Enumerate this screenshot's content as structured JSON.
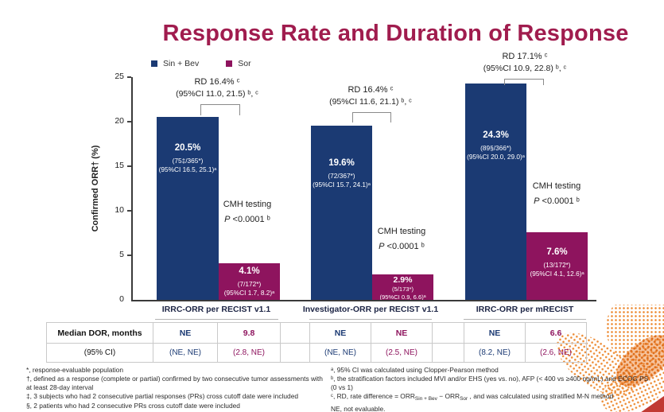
{
  "title": "Response Rate and Duration of Response",
  "colors": {
    "sin_bev": "#1B3A73",
    "sor": "#8E145E",
    "title": "#A01C4E"
  },
  "legend": [
    {
      "label": "Sin + Bev"
    },
    {
      "label": "Sor"
    }
  ],
  "y_axis": {
    "label": "Confirmed ORR† (%)",
    "ticks": [
      "25",
      "20",
      "15",
      "10",
      "5",
      "0"
    ]
  },
  "chart_data": {
    "type": "bar",
    "title": "Response Rate and Duration of Response",
    "ylabel": "Confirmed ORR† (%)",
    "ylim": [
      0,
      25
    ],
    "grid": false,
    "legend_position": "top-left",
    "categories": [
      "IRRC-ORR per RECIST v1.1",
      "Investigator-ORR per RECIST v1.1",
      "IRRC-ORR per mRECIST"
    ],
    "series": [
      {
        "name": "Sin + Bev",
        "values": [
          20.5,
          19.6,
          24.3
        ]
      },
      {
        "name": "Sor",
        "values": [
          4.1,
          2.9,
          7.6
        ]
      }
    ],
    "groups": [
      {
        "category": "IRRC-ORR per RECIST v1.1",
        "rd": "RD 16.4% ᶜ",
        "rd_ci": "(95%CI 11.0, 21.5) ᵇ, ᶜ",
        "cmh_line1": "CMH testing",
        "cmh_p": "P",
        "cmh_value": " <0.0001 ᵇ",
        "sin_bev": {
          "value": 20.5,
          "pct": "20.5%",
          "n": "(75‡/365*)",
          "ci": "(95%CI 16.5, 25.1)ᵃ"
        },
        "sor": {
          "value": 4.1,
          "pct": "4.1%",
          "n": "(7/172*)",
          "ci": "(95%CI 1.7, 8.2)ᵃ"
        }
      },
      {
        "category": "Investigator-ORR per RECIST v1.1",
        "rd": "RD 16.4% ᶜ",
        "rd_ci": "(95%CI 11.6, 21.1) ᵇ, ᶜ",
        "cmh_line1": "CMH testing",
        "cmh_p": "P",
        "cmh_value": " <0.0001 ᵇ",
        "sin_bev": {
          "value": 19.6,
          "pct": "19.6%",
          "n": "(72/367*)",
          "ci": "(95%CI 15.7, 24.1)ᵃ"
        },
        "sor": {
          "value": 2.9,
          "pct": "2.9%",
          "n": "(5/173*)",
          "ci": "(95%CI 0.9, 6.6)ᵃ"
        }
      },
      {
        "category": "IRRC-ORR per mRECIST",
        "rd": "RD 17.1% ᶜ",
        "rd_ci": "(95%CI 10.9, 22.8) ᵇ, ᶜ",
        "cmh_line1": "CMH testing",
        "cmh_p": "P",
        "cmh_value": " <0.0001 ᵇ",
        "sin_bev": {
          "value": 24.3,
          "pct": "24.3%",
          "n": "(89§/366*)",
          "ci": "(95%CI 20.0, 29.0)ᵃ"
        },
        "sor": {
          "value": 7.6,
          "pct": "7.6%",
          "n": "(13/172*)",
          "ci": "(95%CI 4.1, 12.6)ᵃ"
        }
      }
    ]
  },
  "table": {
    "rows": [
      {
        "label": "Median DOR, months",
        "values": [
          "NE",
          "9.8",
          "NE",
          "NE",
          "NE",
          "6.6"
        ]
      },
      {
        "label": "(95% CI)",
        "values": [
          "(NE, NE)",
          "(2.8, NE)",
          "(NE, NE)",
          "(2.5, NE)",
          "(8.2, NE)",
          "(2.6, NE)"
        ]
      }
    ]
  },
  "footnotes": {
    "left": [
      "*, response-evaluable population",
      "†, defined as a response (complete or partial) confirmed by two consecutive tumor assessments with at least 28-day interval",
      "‡, 3 subjects who had 2 consecutive partial responses (PRs) cross cutoff date were included",
      "§, 2 patients who had 2 consecutive PRs cross cutoff date were included"
    ],
    "right": [
      "ᵃ, 95% CI was calculated using Clopper-Pearson method",
      "ᵇ, the stratification factors included MVI and/or EHS (yes vs. no), AFP (< 400 vs ≥400 ng/mL) and ECOG PS (0 vs 1)"
    ],
    "rd_formula": {
      "pre": "ᶜ, RD, rate difference = ORR",
      "sub1": "Sin + Bev",
      "mid": " − ORR",
      "sub2": "Sor",
      "post": " , and was calculated using stratified M-N method"
    },
    "ne_note": "NE, not evaluable."
  }
}
